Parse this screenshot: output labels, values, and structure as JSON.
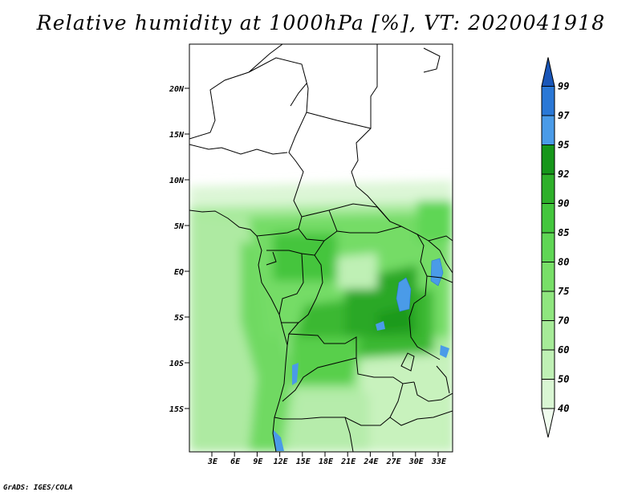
{
  "title": "Relative humidity at 1000hPa [%], VT: 2020041918",
  "credit": "GrADS: IGES/COLA",
  "map": {
    "lat_labels": [
      "20N",
      "15N",
      "10N",
      "5N",
      "EQ",
      "5S",
      "10S",
      "15S"
    ],
    "lon_labels": [
      "3E",
      "6E",
      "9E",
      "12E",
      "15E",
      "18E",
      "21E",
      "24E",
      "27E",
      "30E",
      "33E"
    ]
  },
  "colorbar": {
    "levels": [
      "40",
      "50",
      "60",
      "70",
      "75",
      "80",
      "85",
      "90",
      "92",
      "95",
      "97",
      "99"
    ],
    "colors": [
      "#f0fcee",
      "#d9f6d3",
      "#bff0b5",
      "#a6eb98",
      "#8fe67f",
      "#78df68",
      "#5fd655",
      "#43c63d",
      "#2eb02a",
      "#16961a",
      "#4a9be8",
      "#2a78d6",
      "#1956b8"
    ]
  }
}
